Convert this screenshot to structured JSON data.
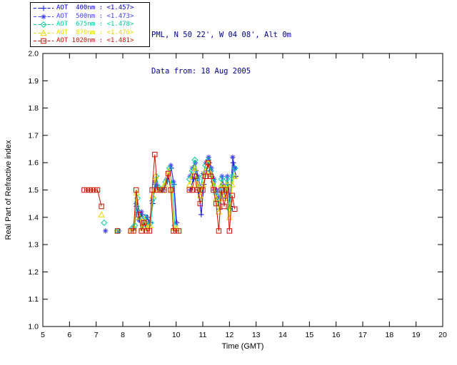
{
  "header": {
    "location_line": "PML, N 50 22', W 04 08', Alt 0m",
    "date_line": "Data from: 18 Aug 2005",
    "text_color": "#000099"
  },
  "legend": {
    "items": [
      {
        "label": "AOT  400nm : <1.457>",
        "color": "#0000dd",
        "marker": "plus"
      },
      {
        "label": "AOT  500nm : <1.473>",
        "color": "#4040ff",
        "marker": "asterisk"
      },
      {
        "label": "AOT  675nm : <1.478>",
        "color": "#00cc99",
        "marker": "diamond"
      },
      {
        "label": "AOT  870nm : <1.476>",
        "color": "#e6d800",
        "marker": "triangle"
      },
      {
        "label": "AOT 1020nm : <1.481>",
        "color": "#cc1100",
        "marker": "square"
      }
    ]
  },
  "chart_data": {
    "type": "line",
    "title": "",
    "xlabel": "Time (GMT)",
    "ylabel": "Real Part of Refractive index",
    "xlim": [
      5,
      20
    ],
    "ylim": [
      1.0,
      2.0
    ],
    "xticks": [
      5,
      6,
      7,
      8,
      9,
      10,
      11,
      12,
      13,
      14,
      15,
      16,
      17,
      18,
      19,
      20
    ],
    "yticks": [
      1.0,
      1.1,
      1.2,
      1.3,
      1.4,
      1.5,
      1.6,
      1.7,
      1.8,
      1.9,
      2.0
    ],
    "grid": false,
    "legend_position": "top-left",
    "gap_threshold": 0.35,
    "series": [
      {
        "name": "AOT 400nm",
        "mean": "<1.457>",
        "color": "#0000dd",
        "marker": "plus",
        "points": [
          [
            8.42,
            1.36
          ],
          [
            8.52,
            1.44
          ],
          [
            8.62,
            1.39
          ],
          [
            8.72,
            1.41
          ],
          [
            8.82,
            1.38
          ],
          [
            8.92,
            1.4
          ],
          [
            9.02,
            1.38
          ],
          [
            9.12,
            1.45
          ],
          [
            9.22,
            1.52
          ],
          [
            9.32,
            1.5
          ],
          [
            9.42,
            1.5
          ],
          [
            9.52,
            1.5
          ],
          [
            9.67,
            1.53
          ],
          [
            9.82,
            1.58
          ],
          [
            9.92,
            1.52
          ],
          [
            10.02,
            1.38
          ],
          [
            10.54,
            1.5
          ],
          [
            10.64,
            1.54
          ],
          [
            10.74,
            1.57
          ],
          [
            10.84,
            1.5
          ],
          [
            10.94,
            1.41
          ],
          [
            11.04,
            1.52
          ],
          [
            11.14,
            1.57
          ],
          [
            11.24,
            1.6
          ],
          [
            11.34,
            1.55
          ],
          [
            11.44,
            1.5
          ],
          [
            11.54,
            1.47
          ],
          [
            11.64,
            1.43
          ],
          [
            11.74,
            1.52
          ],
          [
            11.84,
            1.47
          ],
          [
            11.94,
            1.52
          ],
          [
            12.04,
            1.44
          ],
          [
            12.14,
            1.6
          ],
          [
            12.24,
            1.55
          ]
        ]
      },
      {
        "name": "AOT 500nm",
        "mean": "<1.473>",
        "color": "#4040ff",
        "marker": "asterisk",
        "points": [
          [
            7.35,
            1.35
          ],
          [
            7.85,
            1.35
          ],
          [
            8.4,
            1.36
          ],
          [
            8.5,
            1.45
          ],
          [
            8.6,
            1.39
          ],
          [
            8.7,
            1.42
          ],
          [
            8.8,
            1.38
          ],
          [
            8.9,
            1.4
          ],
          [
            9.0,
            1.38
          ],
          [
            9.1,
            1.46
          ],
          [
            9.2,
            1.53
          ],
          [
            9.3,
            1.51
          ],
          [
            9.4,
            1.5
          ],
          [
            9.5,
            1.5
          ],
          [
            9.65,
            1.54
          ],
          [
            9.8,
            1.59
          ],
          [
            9.9,
            1.53
          ],
          [
            10.0,
            1.38
          ],
          [
            10.52,
            1.55
          ],
          [
            10.62,
            1.58
          ],
          [
            10.72,
            1.6
          ],
          [
            10.82,
            1.55
          ],
          [
            10.92,
            1.51
          ],
          [
            11.02,
            1.56
          ],
          [
            11.12,
            1.6
          ],
          [
            11.22,
            1.62
          ],
          [
            11.32,
            1.58
          ],
          [
            11.42,
            1.54
          ],
          [
            11.52,
            1.5
          ],
          [
            11.62,
            1.47
          ],
          [
            11.72,
            1.55
          ],
          [
            11.82,
            1.5
          ],
          [
            11.92,
            1.55
          ],
          [
            12.02,
            1.46
          ],
          [
            12.12,
            1.62
          ],
          [
            12.22,
            1.58
          ]
        ]
      },
      {
        "name": "AOT 675nm",
        "mean": "<1.478>",
        "color": "#00cc99",
        "marker": "diamond",
        "points": [
          [
            7.3,
            1.38
          ],
          [
            7.8,
            1.35
          ],
          [
            8.35,
            1.36
          ],
          [
            8.45,
            1.37
          ],
          [
            8.55,
            1.47
          ],
          [
            8.65,
            1.4
          ],
          [
            8.75,
            1.37
          ],
          [
            8.85,
            1.4
          ],
          [
            8.95,
            1.37
          ],
          [
            9.05,
            1.38
          ],
          [
            9.15,
            1.47
          ],
          [
            9.25,
            1.55
          ],
          [
            9.35,
            1.51
          ],
          [
            9.45,
            1.5
          ],
          [
            9.6,
            1.53
          ],
          [
            9.75,
            1.58
          ],
          [
            9.85,
            1.52
          ],
          [
            9.95,
            1.37
          ],
          [
            10.5,
            1.54
          ],
          [
            10.6,
            1.57
          ],
          [
            10.7,
            1.61
          ],
          [
            10.8,
            1.54
          ],
          [
            10.9,
            1.5
          ],
          [
            11.0,
            1.55
          ],
          [
            11.1,
            1.59
          ],
          [
            11.2,
            1.61
          ],
          [
            11.3,
            1.57
          ],
          [
            11.4,
            1.53
          ],
          [
            11.5,
            1.49
          ],
          [
            11.6,
            1.45
          ],
          [
            11.7,
            1.54
          ],
          [
            11.8,
            1.49
          ],
          [
            11.9,
            1.54
          ],
          [
            12.0,
            1.43
          ],
          [
            12.1,
            1.55
          ],
          [
            12.2,
            1.58
          ]
        ]
      },
      {
        "name": "AOT 870nm",
        "mean": "<1.476>",
        "color": "#e6d800",
        "marker": "triangle",
        "points": [
          [
            7.2,
            1.41
          ],
          [
            7.8,
            1.35
          ],
          [
            8.3,
            1.35
          ],
          [
            8.42,
            1.36
          ],
          [
            8.52,
            1.49
          ],
          [
            8.62,
            1.4
          ],
          [
            8.72,
            1.36
          ],
          [
            8.82,
            1.39
          ],
          [
            8.92,
            1.36
          ],
          [
            9.02,
            1.37
          ],
          [
            9.12,
            1.48
          ],
          [
            9.22,
            1.55
          ],
          [
            9.32,
            1.5
          ],
          [
            9.42,
            1.5
          ],
          [
            9.57,
            1.52
          ],
          [
            9.72,
            1.57
          ],
          [
            9.82,
            1.5
          ],
          [
            9.92,
            1.36
          ],
          [
            10.02,
            1.36
          ],
          [
            10.5,
            1.52
          ],
          [
            10.6,
            1.55
          ],
          [
            10.7,
            1.58
          ],
          [
            10.8,
            1.52
          ],
          [
            10.9,
            1.48
          ],
          [
            11.0,
            1.52
          ],
          [
            11.1,
            1.57
          ],
          [
            11.2,
            1.6
          ],
          [
            11.3,
            1.56
          ],
          [
            11.4,
            1.52
          ],
          [
            11.5,
            1.47
          ],
          [
            11.6,
            1.42
          ],
          [
            11.7,
            1.52
          ],
          [
            11.8,
            1.47
          ],
          [
            11.9,
            1.52
          ],
          [
            12.0,
            1.4
          ],
          [
            12.1,
            1.52
          ],
          [
            12.2,
            1.55
          ]
        ]
      },
      {
        "name": "AOT 1020nm",
        "mean": "<1.481>",
        "color": "#cc1100",
        "marker": "square",
        "points": [
          [
            6.55,
            1.5
          ],
          [
            6.65,
            1.5
          ],
          [
            6.75,
            1.5
          ],
          [
            6.85,
            1.5
          ],
          [
            6.95,
            1.5
          ],
          [
            7.05,
            1.5
          ],
          [
            7.2,
            1.44
          ],
          [
            7.8,
            1.35
          ],
          [
            8.3,
            1.35
          ],
          [
            8.4,
            1.35
          ],
          [
            8.5,
            1.5
          ],
          [
            8.6,
            1.41
          ],
          [
            8.7,
            1.35
          ],
          [
            8.8,
            1.38
          ],
          [
            8.9,
            1.35
          ],
          [
            9.0,
            1.35
          ],
          [
            9.1,
            1.5
          ],
          [
            9.2,
            1.63
          ],
          [
            9.3,
            1.5
          ],
          [
            9.4,
            1.5
          ],
          [
            9.55,
            1.5
          ],
          [
            9.7,
            1.56
          ],
          [
            9.8,
            1.5
          ],
          [
            9.9,
            1.35
          ],
          [
            10.0,
            1.35
          ],
          [
            10.1,
            1.35
          ],
          [
            10.5,
            1.5
          ],
          [
            10.6,
            1.5
          ],
          [
            10.7,
            1.55
          ],
          [
            10.8,
            1.5
          ],
          [
            10.9,
            1.45
          ],
          [
            11.0,
            1.5
          ],
          [
            11.1,
            1.55
          ],
          [
            11.2,
            1.6
          ],
          [
            11.3,
            1.55
          ],
          [
            11.4,
            1.5
          ],
          [
            11.5,
            1.45
          ],
          [
            11.6,
            1.35
          ],
          [
            11.7,
            1.5
          ],
          [
            11.8,
            1.44
          ],
          [
            11.9,
            1.5
          ],
          [
            12.0,
            1.35
          ],
          [
            12.1,
            1.48
          ],
          [
            12.2,
            1.43
          ]
        ]
      }
    ]
  }
}
